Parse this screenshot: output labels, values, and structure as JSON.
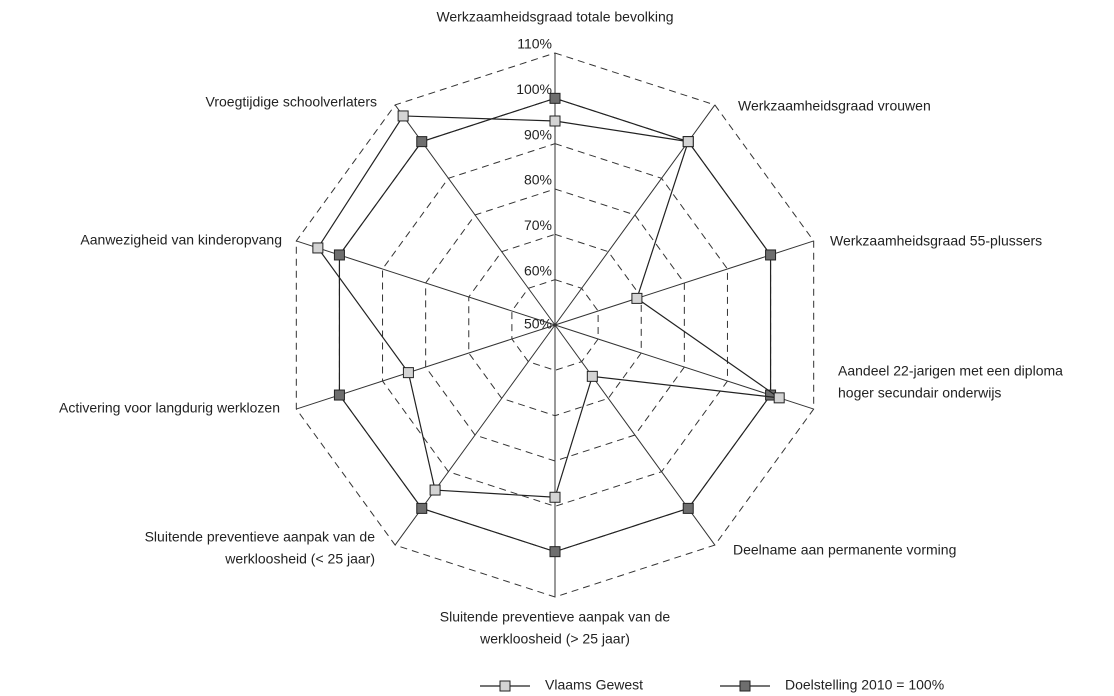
{
  "chart_data": {
    "type": "radar",
    "categories": [
      [
        "Werkzaamheidsgraad totale bevolking"
      ],
      [
        "Werkzaamheidsgraad vrouwen"
      ],
      [
        "Werkzaamheidsgraad 55-plussers"
      ],
      [
        "Aandeel 22-jarigen met een diploma",
        "hoger secundair onderwijs"
      ],
      [
        "Deelname aan permanente vorming"
      ],
      [
        "Sluitende preventieve aanpak van de",
        "werkloosheid (> 25 jaar)"
      ],
      [
        "Sluitende preventieve aanpak van de",
        "werkloosheid (< 25 jaar)"
      ],
      [
        "Activering voor langdurig werklozen"
      ],
      [
        "Aanwezigheid van kinderopvang"
      ],
      [
        "Vroegtijdige schoolverlaters"
      ]
    ],
    "series": [
      {
        "name": "Vlaams Gewest",
        "color": "#d4d4d4",
        "values": [
          95,
          100,
          69,
          102,
          64,
          88,
          95,
          84,
          105,
          107
        ]
      },
      {
        "name": "Doelstelling 2010 = 100%",
        "color": "#6e6e6e",
        "values": [
          100,
          100,
          100,
          100,
          100,
          100,
          100,
          100,
          100,
          100
        ]
      }
    ],
    "ylim": [
      50,
      110
    ],
    "yticks": [
      {
        "value": 50,
        "label": "50%"
      },
      {
        "value": 60,
        "label": "60%"
      },
      {
        "value": 70,
        "label": "70%"
      },
      {
        "value": 80,
        "label": "80%"
      },
      {
        "value": 90,
        "label": "90%"
      },
      {
        "value": 100,
        "label": "100%"
      },
      {
        "value": 110,
        "label": "110%"
      }
    ],
    "grid": true,
    "legend": "bottom"
  }
}
